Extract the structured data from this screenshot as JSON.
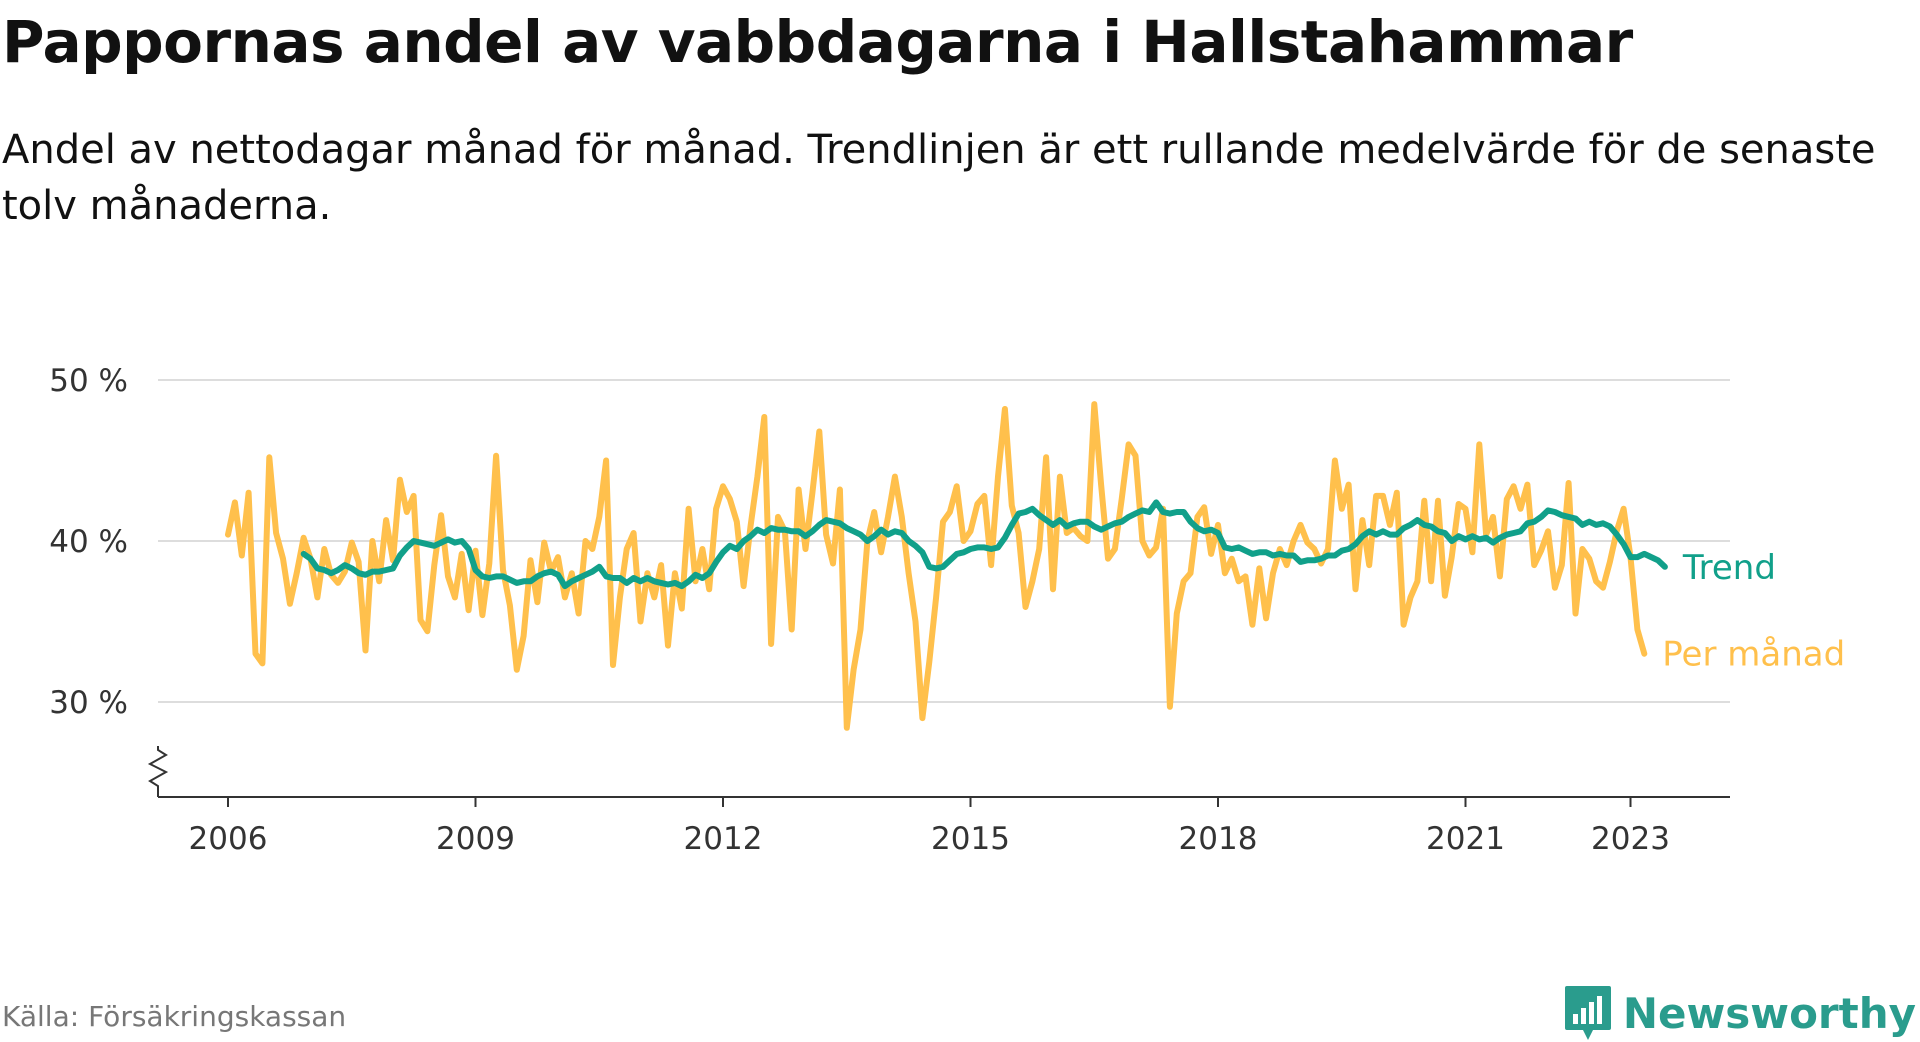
{
  "title": "Pappornas andel av vabbdagarna i Hallstahammar",
  "subtitle": "Andel av nettodagar månad för månad. Trendlinjen är ett rullande medelvärde för de senaste tolv månaderna.",
  "source": "Källa: Försäkringskassan",
  "logo_text": "Newsworthy",
  "logo_icon": "bar-chart-badge-icon",
  "colors": {
    "monthly": "#FFC04C",
    "trend": "#11A08A",
    "grid": "#dddddd",
    "axis": "#333333"
  },
  "chart_data": {
    "type": "line",
    "title": "Pappornas andel av vabbdagarna i Hallstahammar",
    "xlabel": "",
    "ylabel": "",
    "ylim": [
      24,
      50
    ],
    "yticks": [
      30,
      40,
      50
    ],
    "ytick_labels": [
      "30 %",
      "40 %",
      "50 %"
    ],
    "axis_break": true,
    "grid": true,
    "xticks": [
      2006,
      2009,
      2012,
      2015,
      2018,
      2021,
      2023
    ],
    "xtick_labels": [
      "2006",
      "2009",
      "2012",
      "2015",
      "2018",
      "2021",
      "2023"
    ],
    "series": [
      {
        "name": "Per månad",
        "label_value": 33.0,
        "start_year": 2006.0,
        "values": [
          40.4,
          42.4,
          39.1,
          43.0,
          33.0,
          32.4,
          45.2,
          40.5,
          38.9,
          36.1,
          38.0,
          40.2,
          38.9,
          36.5,
          39.5,
          37.9,
          37.4,
          38.1,
          39.9,
          38.7,
          33.2,
          40.0,
          37.5,
          41.3,
          38.8,
          43.8,
          41.8,
          42.8,
          35.1,
          34.4,
          38.5,
          41.6,
          37.8,
          36.5,
          39.2,
          35.7,
          39.4,
          35.4,
          38.6,
          45.3,
          38.2,
          36.0,
          32.0,
          34.1,
          38.8,
          36.2,
          39.9,
          38.1,
          39.0,
          36.5,
          38.0,
          35.5,
          40.0,
          39.5,
          41.5,
          45.0,
          32.3,
          36.5,
          39.5,
          40.5,
          35.0,
          38.0,
          36.5,
          38.5,
          33.5,
          38.0,
          35.8,
          42.0,
          37.5,
          39.5,
          37.0,
          42.0,
          43.4,
          42.6,
          41.2,
          37.2,
          40.9,
          44.0,
          47.7,
          33.6,
          41.5,
          40.6,
          34.5,
          43.2,
          39.5,
          43.0,
          46.8,
          40.4,
          38.6,
          43.2,
          28.4,
          32.0,
          34.5,
          40.0,
          41.8,
          39.3,
          41.5,
          44.0,
          41.5,
          38.0,
          35.0,
          29.0,
          32.5,
          36.5,
          41.2,
          41.8,
          43.4,
          40.0,
          40.6,
          42.3,
          42.8,
          38.5,
          44.0,
          48.2,
          42.2,
          40.5,
          35.9,
          37.5,
          39.5,
          45.2,
          37.0,
          44.0,
          40.5,
          40.8,
          40.3,
          40.0,
          48.5,
          43.5,
          38.9,
          39.5,
          42.6,
          46.0,
          45.3,
          40.0,
          39.1,
          39.6,
          42.0,
          29.7,
          35.5,
          37.5,
          38.0,
          41.5,
          42.1,
          39.2,
          41.0,
          38.0,
          38.9,
          37.5,
          37.8,
          34.8,
          38.3,
          35.2,
          38.0,
          39.5,
          38.5,
          40.0,
          41.0,
          39.9,
          39.5,
          38.6,
          39.5,
          45.0,
          42.0,
          43.5,
          37.0,
          41.3,
          38.5,
          42.8,
          42.8,
          41.0,
          43.0,
          34.8,
          36.5,
          37.5,
          42.5,
          37.5,
          42.5,
          36.6,
          39.0,
          42.3,
          42.0,
          39.3,
          46.0,
          40.4,
          41.5,
          37.8,
          42.6,
          43.4,
          42.0,
          43.5,
          38.5,
          39.4,
          40.6,
          37.1,
          38.5,
          43.6,
          35.5,
          39.5,
          38.9,
          37.5,
          37.1,
          38.7,
          40.6,
          42.0,
          39.0,
          34.5,
          33.0
        ]
      },
      {
        "name": "Trend",
        "label_value": 38.4,
        "start_year": 2006.917,
        "values": [
          39.2,
          38.9,
          38.3,
          38.2,
          38.0,
          38.2,
          38.5,
          38.3,
          38.0,
          37.9,
          38.1,
          38.1,
          38.2,
          38.3,
          39.1,
          39.6,
          40.0,
          39.9,
          39.8,
          39.7,
          39.9,
          40.1,
          39.9,
          40.0,
          39.5,
          38.2,
          37.8,
          37.7,
          37.8,
          37.8,
          37.6,
          37.4,
          37.5,
          37.5,
          37.8,
          38.0,
          38.1,
          37.9,
          37.2,
          37.5,
          37.7,
          37.9,
          38.1,
          38.4,
          37.8,
          37.7,
          37.7,
          37.4,
          37.7,
          37.5,
          37.7,
          37.5,
          37.4,
          37.3,
          37.4,
          37.2,
          37.5,
          37.9,
          37.7,
          38.0,
          38.7,
          39.3,
          39.7,
          39.5,
          40.0,
          40.3,
          40.7,
          40.5,
          40.8,
          40.7,
          40.7,
          40.6,
          40.6,
          40.3,
          40.6,
          41.0,
          41.3,
          41.2,
          41.1,
          40.8,
          40.6,
          40.4,
          40.0,
          40.3,
          40.7,
          40.4,
          40.6,
          40.5,
          40.0,
          39.7,
          39.3,
          38.4,
          38.3,
          38.4,
          38.8,
          39.2,
          39.3,
          39.5,
          39.6,
          39.6,
          39.5,
          39.6,
          40.2,
          41.0,
          41.7,
          41.8,
          42.0,
          41.6,
          41.3,
          41.0,
          41.3,
          40.9,
          41.1,
          41.2,
          41.2,
          40.9,
          40.7,
          40.9,
          41.1,
          41.2,
          41.5,
          41.7,
          41.9,
          41.8,
          42.4,
          41.8,
          41.7,
          41.8,
          41.8,
          41.2,
          40.8,
          40.6,
          40.7,
          40.5,
          39.6,
          39.5,
          39.6,
          39.4,
          39.2,
          39.3,
          39.3,
          39.1,
          39.2,
          39.1,
          39.1,
          38.7,
          38.8,
          38.8,
          38.9,
          39.1,
          39.1,
          39.4,
          39.5,
          39.8,
          40.3,
          40.6,
          40.4,
          40.6,
          40.4,
          40.4,
          40.8,
          41.0,
          41.3,
          41.0,
          40.9,
          40.6,
          40.5,
          40.0,
          40.3,
          40.1,
          40.3,
          40.1,
          40.2,
          39.9,
          40.2,
          40.4,
          40.5,
          40.6,
          41.1,
          41.2,
          41.5,
          41.9,
          41.8,
          41.6,
          41.5,
          41.4,
          41.0,
          41.2,
          41.0,
          41.1,
          40.9,
          40.4,
          39.8,
          39.0,
          39.0,
          39.2,
          39.0,
          38.8,
          38.4
        ]
      }
    ]
  }
}
